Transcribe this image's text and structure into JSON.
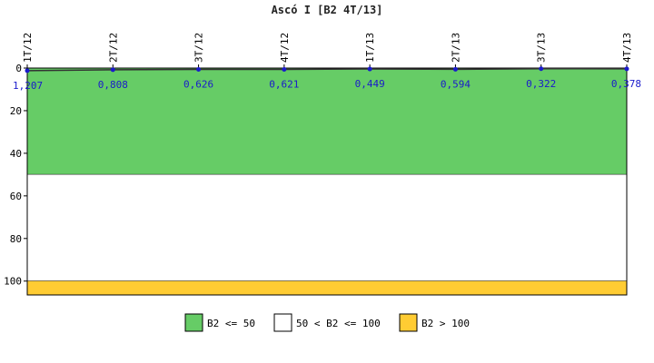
{
  "chart_data": {
    "type": "line",
    "title": "Ascó I [B2 4T/13]",
    "categories": [
      "1T/12",
      "2T/12",
      "3T/12",
      "4T/12",
      "1T/13",
      "2T/13",
      "3T/13",
      "4T/13"
    ],
    "series": [
      {
        "values": [
          1.207,
          0.808,
          0.626,
          0.621,
          0.449,
          0.594,
          0.322,
          0.378
        ],
        "labels": [
          "1,207",
          "0,808",
          "0,626",
          "0,621",
          "0,449",
          "0,594",
          "0,322",
          "0,378"
        ],
        "color": "#1a1acc"
      }
    ],
    "ylim": [
      0,
      106.5
    ],
    "y_inverted": true,
    "yticks": [
      "0",
      "20",
      "40",
      "60",
      "80",
      "100"
    ],
    "grid": false,
    "bands": [
      {
        "from": 0,
        "to": 50,
        "color": "#66cc66",
        "label": "B2 <= 50"
      },
      {
        "from": 50,
        "to": 100,
        "color": "#ffffff",
        "label": "50 < B2 <= 100"
      },
      {
        "from": 100,
        "to": 106.5,
        "color": "#ffcc33",
        "label": "B2 > 100"
      }
    ],
    "legend_position": "bottom"
  }
}
